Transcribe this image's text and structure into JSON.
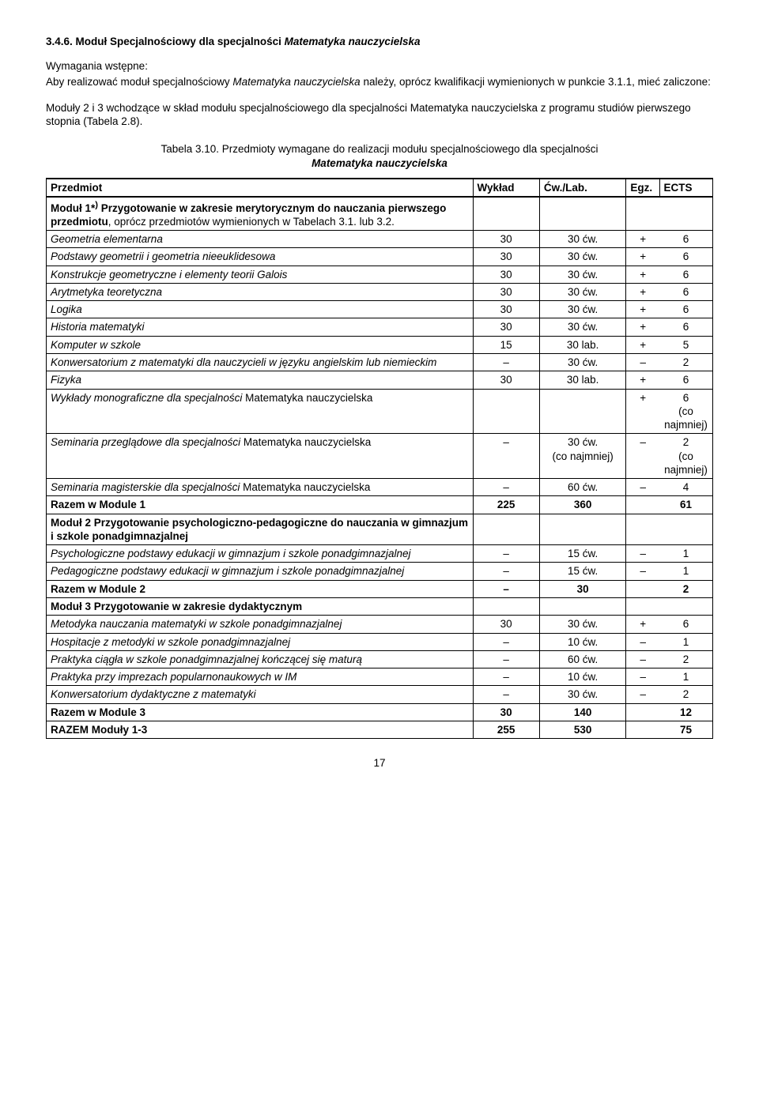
{
  "section_num": "3.4.6.",
  "section_title_lead": "Moduł Specjalnościowy dla specjalności ",
  "section_title_ital": "Matematyka nauczycielska",
  "req_label": "Wymagania wstępne:",
  "req_line1_a": "Aby realizować moduł specjalnościowy ",
  "req_line1_ital": "Matematyka nauczycielska",
  "req_line1_b": "  należy, oprócz kwalifikacji wymienionych w punkcie 3.1.1, mieć zaliczone:",
  "req_line2": "Moduły 2 i 3 wchodzące w skład modułu specjalnościowego dla specjalności Matematyka nauczycielska z programu studiów pierwszego stopnia (Tabela 2.8).",
  "table_title_a": "Tabela 3.10. Przedmioty wymagane do realizacji modułu specjalnościowego dla specjalności ",
  "table_title_ital": "Matematyka nauczycielska",
  "headers": {
    "c0": "Przedmiot",
    "c1": "Wykład",
    "c2": "Ćw./Lab.",
    "c3": "Egz.",
    "c4": "ECTS"
  },
  "rows": [
    {
      "kind": "modheader",
      "html": "<span class=\"bold\">Moduł 1*<sup>)</sup> Przygotowanie w zakresie merytorycznym do nauczania pierwszego przedmiotu</span>, oprócz przedmiotów wymienionych w Tabelach 3.1. lub 3.2."
    },
    {
      "kind": "course",
      "name_ital": "Geometria elementarna",
      "wyk": "30",
      "cw": "30 ćw.",
      "egz": "+",
      "ects": "6"
    },
    {
      "kind": "course",
      "name_ital": "Podstawy geometrii i geometria nieeuklidesowa",
      "wyk": "30",
      "cw": "30 ćw.",
      "egz": "+",
      "ects": "6"
    },
    {
      "kind": "course",
      "name_ital": "Konstrukcje geometryczne i elementy teorii Galois",
      "wyk": "30",
      "cw": "30 ćw.",
      "egz": "+",
      "ects": "6"
    },
    {
      "kind": "course",
      "name_ital": "Arytmetyka teoretyczna",
      "wyk": "30",
      "cw": "30 ćw.",
      "egz": "+",
      "ects": "6"
    },
    {
      "kind": "course",
      "name_ital": "Logika",
      "wyk": "30",
      "cw": "30 ćw.",
      "egz": "+",
      "ects": "6"
    },
    {
      "kind": "course",
      "name_ital": "Historia matematyki",
      "wyk": "30",
      "cw": "30 ćw.",
      "egz": "+",
      "ects": "6"
    },
    {
      "kind": "course",
      "name_ital": "Komputer w szkole",
      "wyk": "15",
      "cw": "30 lab.",
      "egz": "+",
      "ects": "5"
    },
    {
      "kind": "course",
      "name_ital": "Konwersatorium z matematyki dla nauczycieli w języku angielskim lub niemieckim",
      "wyk": "–",
      "cw": "30 ćw.",
      "egz": "–",
      "ects": "2"
    },
    {
      "kind": "course",
      "name_ital": "Fizyka",
      "wyk": "30",
      "cw": "30 lab.",
      "egz": "+",
      "ects": "6"
    },
    {
      "kind": "mixed",
      "name_ital": "Wykłady monograficzne dla specjalności ",
      "name_norm": "Matematyka nauczycielska",
      "wyk": "",
      "cw": "",
      "egz": "+",
      "ects": "6\n(co najmniej)"
    },
    {
      "kind": "mixed",
      "name_ital": "Seminaria przeglądowe dla specjalności ",
      "name_norm": "Matematyka nauczycielska",
      "wyk": "–",
      "cw": "30 ćw.\n(co najmniej)",
      "egz": "–",
      "ects": "2\n(co najmniej)"
    },
    {
      "kind": "mixed",
      "name_ital": "Seminaria magisterskie dla specjalności ",
      "name_norm": "Matematyka nauczycielska",
      "wyk": "–",
      "cw": "60 ćw.",
      "egz": "–",
      "ects": "4"
    },
    {
      "kind": "sum",
      "name": "Razem w Module 1",
      "wyk": "225",
      "cw": "360",
      "egz": "",
      "ects": "61"
    },
    {
      "kind": "modheader",
      "html": "<span class=\"bold\">Moduł 2 Przygotowanie  psychologiczno-pedagogiczne do nauczania w gimnazjum i szkole ponadgimnazjalnej</span>"
    },
    {
      "kind": "course",
      "name_ital": "Psychologiczne podstawy edukacji w gimnazjum i szkole ponadgimnazjalnej",
      "wyk": "–",
      "cw": "15 ćw.",
      "egz": "–",
      "ects": "1"
    },
    {
      "kind": "course",
      "name_ital": "Pedagogiczne podstawy edukacji w gimnazjum i szkole ponadgimnazjalnej",
      "wyk": "–",
      "cw": "15 ćw.",
      "egz": "–",
      "ects": "1"
    },
    {
      "kind": "sum",
      "name": "Razem w Module 2",
      "wyk": "–",
      "cw": "30",
      "egz": "",
      "ects": "2"
    },
    {
      "kind": "modheader",
      "html": "<span class=\"bold\">Moduł 3 Przygotowanie w zakresie dydaktycznym</span>"
    },
    {
      "kind": "course",
      "name_ital": "Metodyka nauczania matematyki w szkole ponadgimnazjalnej",
      "wyk": "30",
      "cw": "30 ćw.",
      "egz": "+",
      "ects": "6"
    },
    {
      "kind": "course",
      "name_ital": "Hospitacje z metodyki w szkole ponadgimnazjalnej",
      "wyk": "–",
      "cw": "10 ćw.",
      "egz": "–",
      "ects": "1"
    },
    {
      "kind": "course",
      "name_ital": "Praktyka ciągła w szkole ponadgimnazjalnej kończącej się maturą",
      "wyk": "–",
      "cw": "60 ćw.",
      "egz": "–",
      "ects": "2"
    },
    {
      "kind": "course",
      "name_ital": "Praktyka przy imprezach popularnonaukowych w IM",
      "wyk": "–",
      "cw": "10 ćw.",
      "egz": "–",
      "ects": "1"
    },
    {
      "kind": "course",
      "name_ital": "Konwersatorium dydaktyczne z matematyki",
      "wyk": "–",
      "cw": "30 ćw.",
      "egz": "–",
      "ects": "2"
    },
    {
      "kind": "sum",
      "name": "Razem w Module 3",
      "wyk": "30",
      "cw": "140",
      "egz": "",
      "ects": "12"
    },
    {
      "kind": "sum",
      "name": "RAZEM Moduły 1-3",
      "wyk": "255",
      "cw": "530",
      "egz": "",
      "ects": "75"
    }
  ],
  "page_number": "17"
}
